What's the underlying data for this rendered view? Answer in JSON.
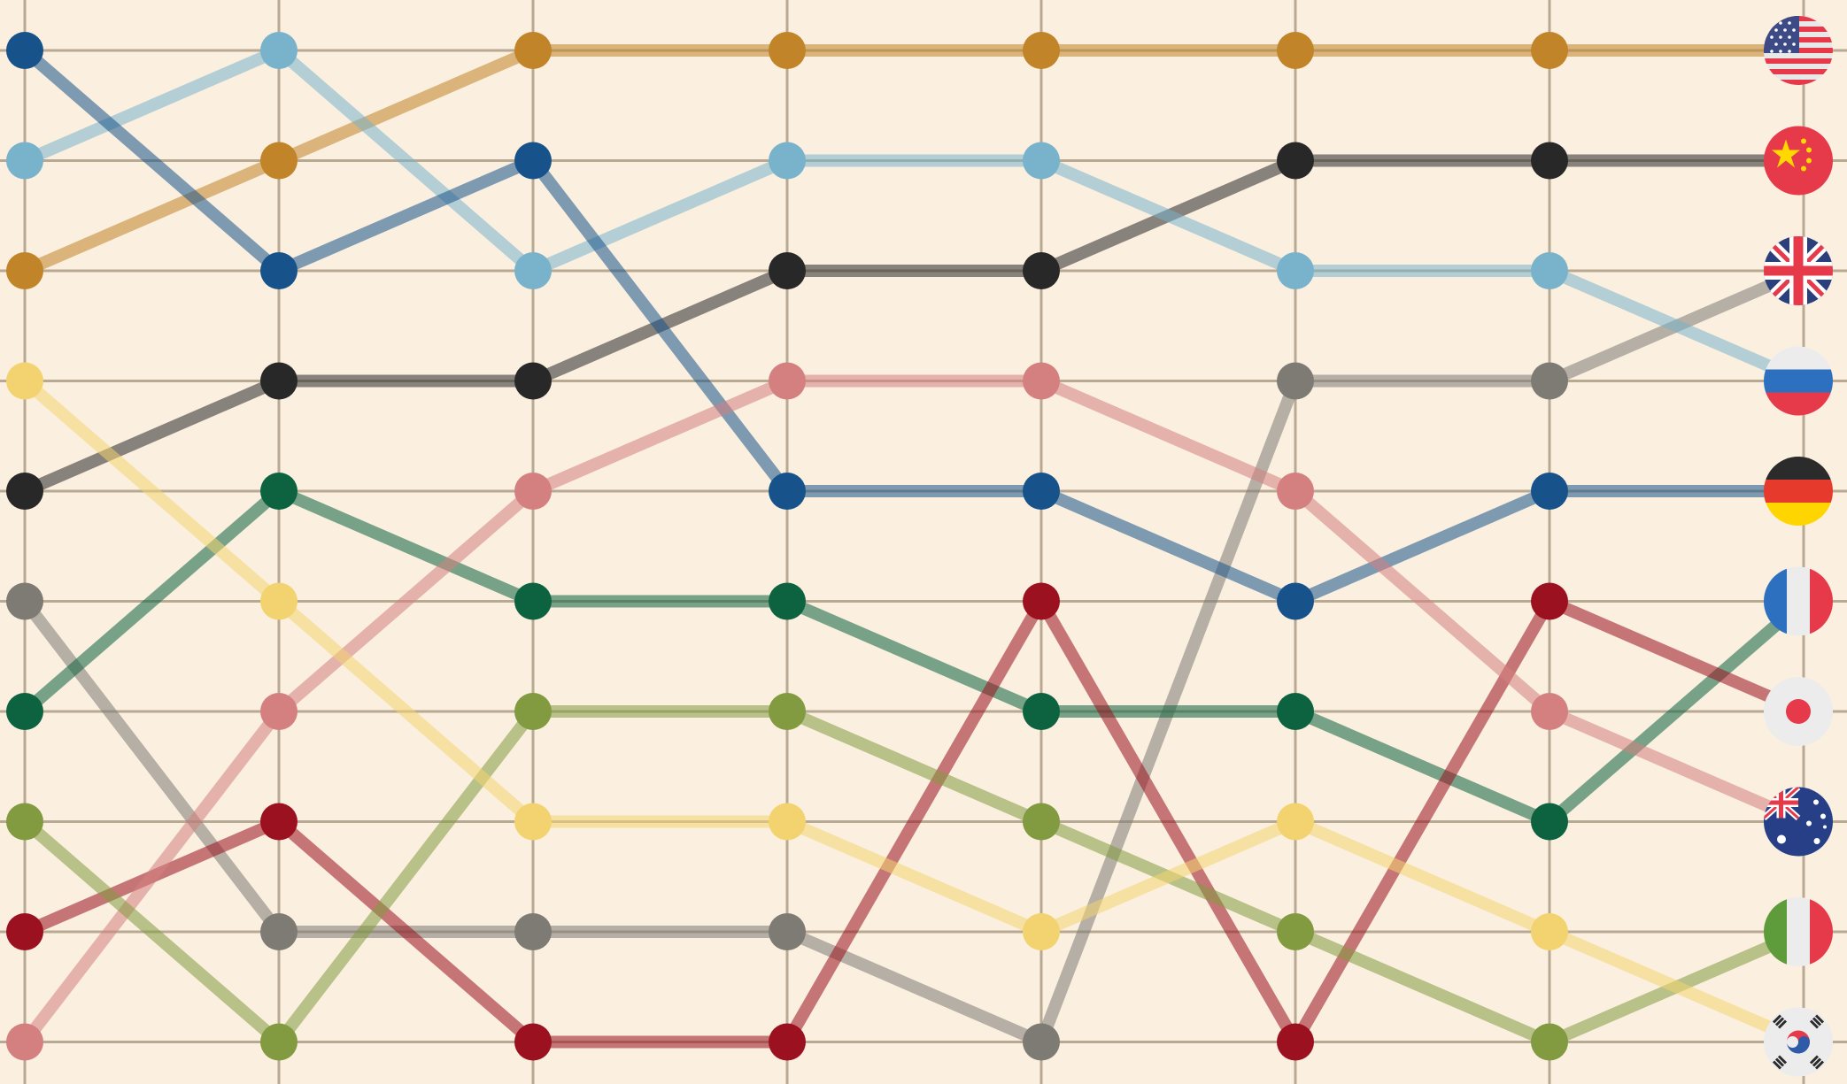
{
  "chart_data": {
    "type": "line",
    "subtype": "bump",
    "x": [
      1,
      2,
      3,
      4,
      5,
      6,
      7,
      8
    ],
    "y_axis": {
      "reversed": true,
      "ylim": [
        1,
        10
      ],
      "ticks": [
        1,
        2,
        3,
        4,
        5,
        6,
        7,
        8,
        9,
        10
      ],
      "tick_labels_shown": false
    },
    "x_axis": {
      "tick_labels_shown": false
    },
    "grid": true,
    "background": "#fbefdf",
    "grid_color": "#b8aa92",
    "series": [
      {
        "flag_icon": "usa-flag-icon",
        "color": "#c18428",
        "values": [
          3,
          2,
          1,
          1,
          1,
          1,
          1,
          1
        ]
      },
      {
        "flag_icon": "china-flag-icon",
        "color": "#282828",
        "values": [
          5,
          4,
          4,
          3,
          3,
          2,
          2,
          2
        ]
      },
      {
        "flag_icon": "uk-flag-icon",
        "color": "#7e7a74",
        "values": [
          6,
          9,
          9,
          9,
          10,
          4,
          4,
          3
        ]
      },
      {
        "flag_icon": "russia-flag-icon",
        "color": "#79b2cb",
        "values": [
          2,
          1,
          3,
          2,
          2,
          3,
          3,
          4
        ]
      },
      {
        "flag_icon": "germany-flag-icon",
        "color": "#17538a",
        "values": [
          1,
          3,
          2,
          5,
          5,
          6,
          5,
          5
        ]
      },
      {
        "flag_icon": "france-flag-icon",
        "color": "#0d6340",
        "values": [
          7,
          5,
          6,
          6,
          7,
          7,
          8,
          6
        ]
      },
      {
        "flag_icon": "japan-flag-icon",
        "color": "#9b111f",
        "values": [
          9,
          8,
          10,
          10,
          6,
          10,
          6,
          7
        ]
      },
      {
        "flag_icon": "australia-flag-icon",
        "color": "#d48080",
        "values": [
          10,
          7,
          5,
          4,
          4,
          5,
          7,
          8
        ]
      },
      {
        "flag_icon": "italy-flag-icon",
        "color": "#829a40",
        "values": [
          8,
          10,
          7,
          7,
          8,
          9,
          10,
          9
        ]
      },
      {
        "flag_icon": "south-korea-flag-icon",
        "color": "#f3d36f",
        "values": [
          4,
          6,
          8,
          8,
          9,
          8,
          9,
          10
        ]
      }
    ]
  }
}
